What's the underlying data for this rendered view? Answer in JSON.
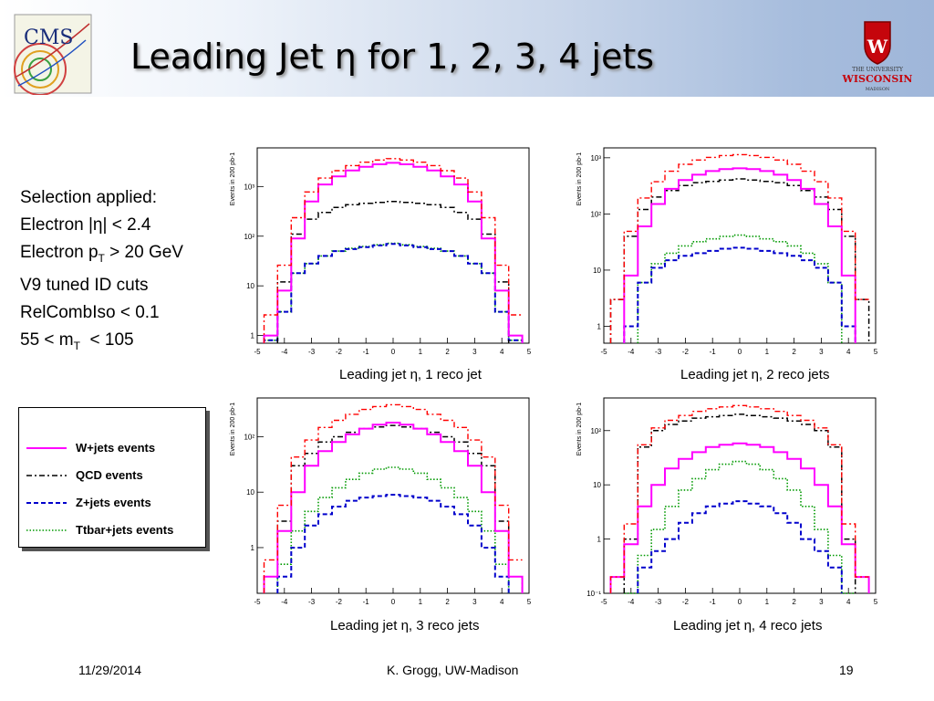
{
  "slide": {
    "title": "Leading Jet η for 1, 2, 3, 4 jets",
    "cms_logo_text": "CMS",
    "uw_logo_lines": [
      "THE UNIVERSITY",
      "WISCONSIN",
      "MADISON"
    ],
    "selection": [
      {
        "text": "Selection applied:"
      },
      {
        "text": "Electron |η| < 2.4"
      },
      {
        "text": "Electron p",
        "sub": "T",
        "after": " > 20 GeV"
      },
      {
        "text": "V9 tuned ID cuts"
      },
      {
        "text": "RelCombIso < 0.1"
      },
      {
        "text": "55 < m",
        "sub": "T",
        "after": "  < 105"
      }
    ],
    "legend": [
      {
        "label": "W+jets events",
        "color": "#ff00ff",
        "style": "solid"
      },
      {
        "label": "QCD events",
        "color": "#000000",
        "style": "dashdot"
      },
      {
        "label": "Z+jets events",
        "color": "#0000cc",
        "style": "dashed"
      },
      {
        "label": "Ttbar+jets events",
        "color": "#009900",
        "style": "dotted"
      }
    ],
    "footer": {
      "date": "11/29/2014",
      "author": "K. Grogg, UW-Madison",
      "page": "19"
    }
  },
  "chart_data": [
    {
      "type": "line",
      "title": "Leading jet η, 1 reco jet",
      "xlabel": "Leading jet η, 1 reco jet",
      "ylabel": "Events in 200 pb-1",
      "yscale": "log",
      "xlim": [
        -5,
        5
      ],
      "ylim": [
        0.7,
        6000
      ],
      "xticks": [
        "-5",
        "-4",
        "-3",
        "-2",
        "-1",
        "0",
        "1",
        "2",
        "3",
        "4",
        "5"
      ],
      "yticks": [
        {
          "v": 1,
          "label": "1"
        },
        {
          "v": 10,
          "label": "10"
        },
        {
          "v": 100,
          "label": "10²"
        },
        {
          "v": 1000,
          "label": "10³"
        }
      ],
      "x": [
        -5,
        -4.5,
        -4,
        -3.5,
        -3,
        -2.5,
        -2,
        -1.5,
        -1,
        -0.5,
        0,
        0.5,
        1,
        1.5,
        2,
        2.5,
        3,
        3.5,
        4,
        4.5,
        5
      ],
      "series": [
        {
          "name": "W+jets events",
          "color": "#ff00ff",
          "values": [
            null,
            1,
            8,
            90,
            500,
            1100,
            1600,
            2100,
            2500,
            2800,
            3000,
            2800,
            2500,
            2100,
            1600,
            1100,
            500,
            90,
            8,
            1,
            null
          ]
        },
        {
          "name": "QCD events",
          "color": "#000000",
          "values": [
            null,
            null,
            12,
            110,
            220,
            300,
            380,
            430,
            460,
            480,
            500,
            480,
            460,
            430,
            380,
            300,
            220,
            110,
            12,
            null,
            null
          ]
        },
        {
          "name": "Z+jets events",
          "color": "#0000cc",
          "values": [
            null,
            0.8,
            3,
            18,
            28,
            40,
            50,
            55,
            60,
            65,
            70,
            65,
            60,
            55,
            50,
            40,
            28,
            18,
            3,
            0.8,
            null
          ]
        },
        {
          "name": "Ttbar+jets events",
          "color": "#009900",
          "values": [
            null,
            0.8,
            3,
            18,
            28,
            40,
            50,
            57,
            62,
            67,
            72,
            67,
            62,
            57,
            50,
            40,
            28,
            18,
            3,
            0.8,
            null
          ]
        }
      ]
    },
    {
      "type": "line",
      "title": "Leading jet η, 2 reco jets",
      "xlabel": "Leading jet η, 2 reco jets",
      "ylabel": "Events in 200 pb-1",
      "yscale": "log",
      "xlim": [
        -5,
        5
      ],
      "ylim": [
        0.5,
        1500
      ],
      "xticks": [
        "-5",
        "-4",
        "-3",
        "-2",
        "-1",
        "0",
        "1",
        "2",
        "3",
        "4",
        "5"
      ],
      "yticks": [
        {
          "v": 1,
          "label": "1"
        },
        {
          "v": 10,
          "label": "10"
        },
        {
          "v": 100,
          "label": "10²"
        },
        {
          "v": 1000,
          "label": "10³"
        }
      ],
      "x": [
        -5,
        -4.5,
        -4,
        -3.5,
        -3,
        -2.5,
        -2,
        -1.5,
        -1,
        -0.5,
        0,
        0.5,
        1,
        1.5,
        2,
        2.5,
        3,
        3.5,
        4,
        4.5,
        5
      ],
      "series": [
        {
          "name": "W+jets events",
          "color": "#ff00ff",
          "values": [
            null,
            null,
            8,
            60,
            150,
            280,
            400,
            500,
            580,
            630,
            650,
            630,
            580,
            500,
            400,
            280,
            150,
            60,
            8,
            null,
            null
          ]
        },
        {
          "name": "QCD events",
          "color": "#000000",
          "values": [
            null,
            3,
            40,
            120,
            200,
            260,
            320,
            360,
            380,
            400,
            420,
            400,
            380,
            360,
            320,
            260,
            200,
            120,
            40,
            3,
            null
          ]
        },
        {
          "name": "Z+jets events",
          "color": "#0000cc",
          "values": [
            null,
            null,
            1,
            6,
            11,
            15,
            18,
            20,
            22,
            24,
            25,
            24,
            22,
            20,
            18,
            15,
            11,
            6,
            1,
            null,
            null
          ]
        },
        {
          "name": "Ttbar+jets events",
          "color": "#009900",
          "values": [
            null,
            null,
            null,
            6,
            13,
            20,
            27,
            32,
            36,
            40,
            42,
            40,
            36,
            32,
            27,
            20,
            13,
            6,
            null,
            null,
            null
          ]
        }
      ]
    },
    {
      "type": "line",
      "title": "Leading jet η, 3 reco jets",
      "xlabel": "Leading jet η, 3 reco jets",
      "ylabel": "Events in 200 pb-1",
      "yscale": "log",
      "xlim": [
        -5,
        5
      ],
      "ylim": [
        0.15,
        500
      ],
      "xticks": [
        "-5",
        "-4",
        "-3",
        "-2",
        "-1",
        "0",
        "1",
        "2",
        "3",
        "4",
        "5"
      ],
      "yticks": [
        {
          "v": 1,
          "label": "1"
        },
        {
          "v": 10,
          "label": "10"
        },
        {
          "v": 100,
          "label": "10²"
        }
      ],
      "x": [
        -5,
        -4.5,
        -4,
        -3.5,
        -3,
        -2.5,
        -2,
        -1.5,
        -1,
        -0.5,
        0,
        0.5,
        1,
        1.5,
        2,
        2.5,
        3,
        3.5,
        4,
        4.5,
        5
      ],
      "series": [
        {
          "name": "W+jets events",
          "color": "#ff00ff",
          "values": [
            null,
            0.3,
            2,
            10,
            30,
            55,
            80,
            110,
            140,
            165,
            180,
            165,
            140,
            110,
            80,
            55,
            30,
            10,
            2,
            0.3,
            null
          ]
        },
        {
          "name": "QCD events",
          "color": "#000000",
          "values": [
            null,
            0.3,
            3,
            30,
            50,
            80,
            100,
            120,
            140,
            150,
            160,
            150,
            140,
            120,
            100,
            80,
            50,
            30,
            3,
            0.3,
            null
          ]
        },
        {
          "name": "Z+jets events",
          "color": "#0000cc",
          "values": [
            null,
            null,
            0.3,
            1,
            2.5,
            4,
            5.5,
            7,
            8,
            8.5,
            9,
            8.5,
            8,
            7,
            5.5,
            4,
            2.5,
            1,
            0.3,
            null,
            null
          ]
        },
        {
          "name": "Ttbar+jets events",
          "color": "#009900",
          "values": [
            null,
            null,
            0.5,
            2,
            4.5,
            8,
            12,
            17,
            22,
            26,
            28,
            26,
            22,
            17,
            12,
            8,
            4.5,
            2,
            0.5,
            null,
            null
          ]
        }
      ]
    },
    {
      "type": "line",
      "title": "Leading jet η, 4 reco jets",
      "xlabel": "Leading jet η, 4 reco jets",
      "ylabel": "Events in 200 pb-1",
      "yscale": "log",
      "xlim": [
        -5,
        5
      ],
      "ylim": [
        0.1,
        400
      ],
      "xticks": [
        "-5",
        "-4",
        "-3",
        "-2",
        "-1",
        "0",
        "1",
        "2",
        "3",
        "4",
        "5"
      ],
      "yticks": [
        {
          "v": 0.1,
          "label": "10⁻¹"
        },
        {
          "v": 1,
          "label": "1"
        },
        {
          "v": 10,
          "label": "10"
        },
        {
          "v": 100,
          "label": "10²"
        }
      ],
      "x": [
        -5,
        -4.5,
        -4,
        -3.5,
        -3,
        -2.5,
        -2,
        -1.5,
        -1,
        -0.5,
        0,
        0.5,
        1,
        1.5,
        2,
        2.5,
        3,
        3.5,
        4,
        4.5,
        5
      ],
      "series": [
        {
          "name": "W+jets events",
          "color": "#ff00ff",
          "values": [
            null,
            0.2,
            0.8,
            4,
            10,
            20,
            30,
            40,
            50,
            55,
            58,
            55,
            50,
            40,
            30,
            20,
            10,
            4,
            0.8,
            0.2,
            null
          ]
        },
        {
          "name": "QCD events",
          "color": "#000000",
          "values": [
            null,
            null,
            1,
            50,
            100,
            130,
            150,
            170,
            180,
            190,
            200,
            190,
            180,
            170,
            150,
            130,
            100,
            50,
            1,
            null,
            null
          ]
        },
        {
          "name": "Z+jets events",
          "color": "#0000cc",
          "values": [
            null,
            null,
            null,
            0.3,
            0.6,
            1,
            2,
            3,
            4,
            4.5,
            5,
            4.5,
            4,
            3,
            2,
            1,
            0.6,
            0.3,
            null,
            null,
            null
          ]
        },
        {
          "name": "Ttbar+jets events",
          "color": "#009900",
          "values": [
            null,
            null,
            0.1,
            0.5,
            1.5,
            4,
            8,
            13,
            19,
            24,
            27,
            24,
            19,
            13,
            8,
            4,
            1.5,
            0.5,
            0.1,
            null,
            null
          ]
        }
      ]
    }
  ]
}
